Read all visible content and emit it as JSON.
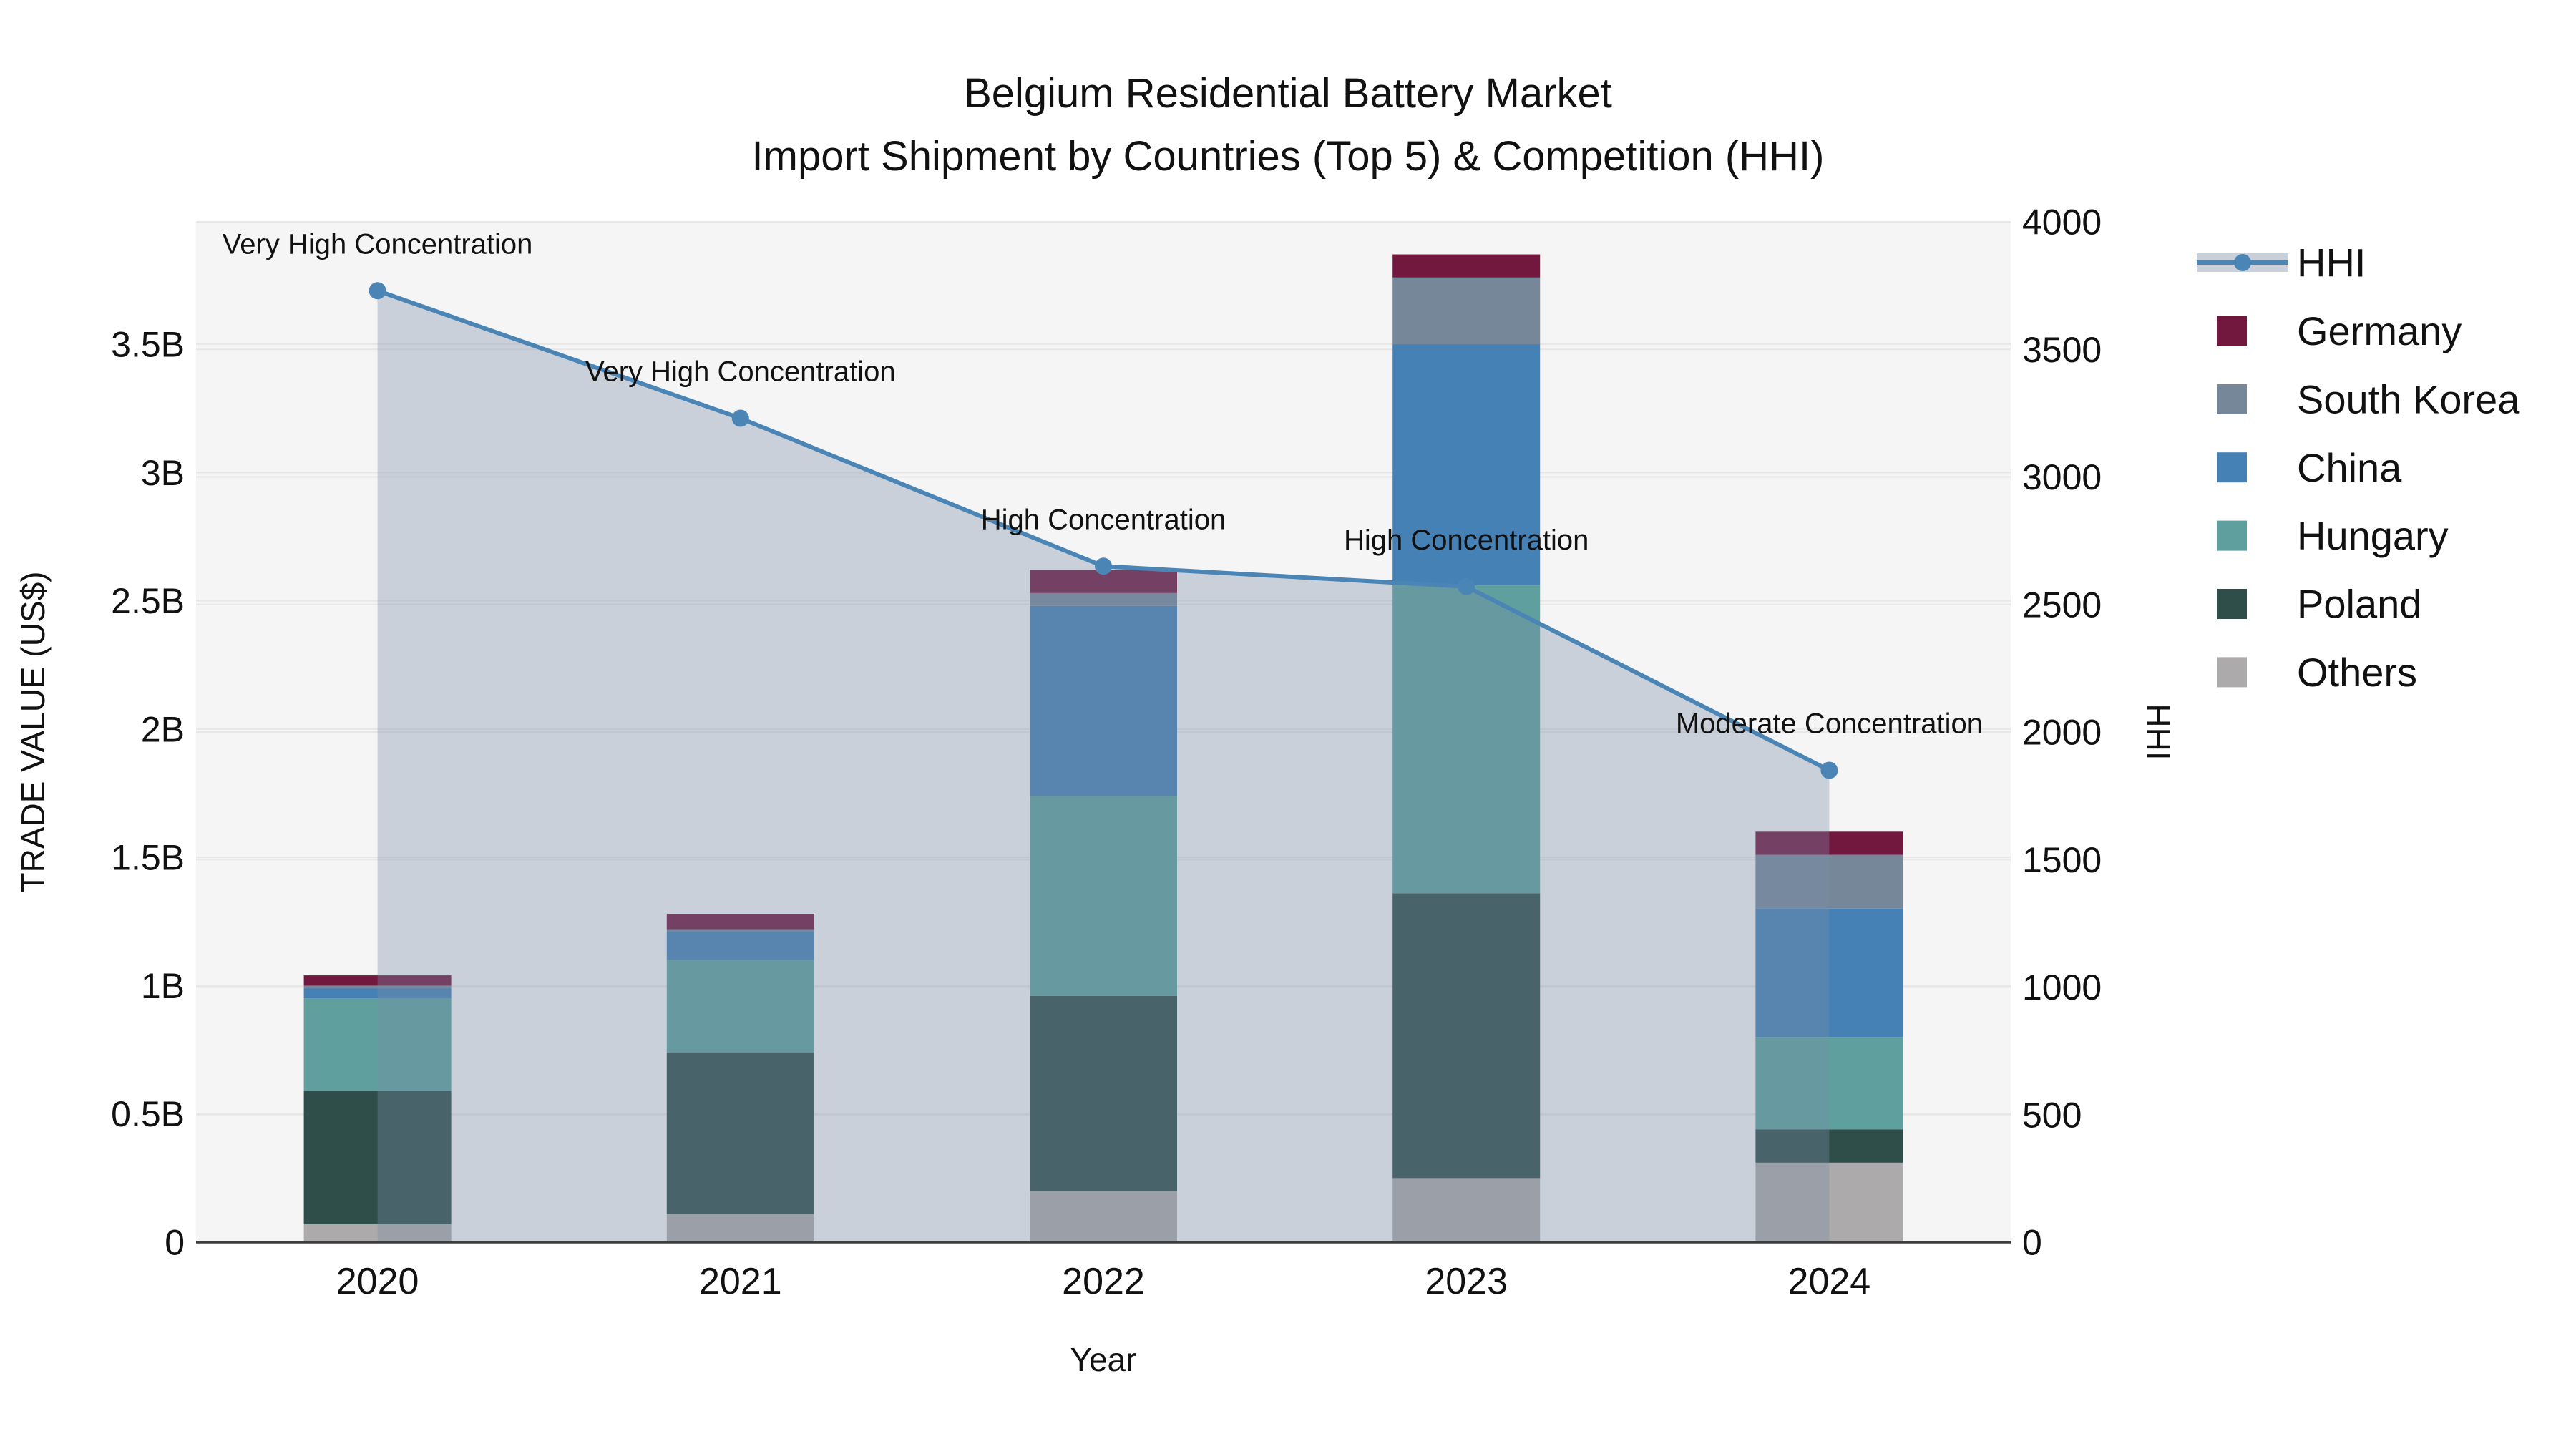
{
  "title": {
    "line1": "Belgium Residential Battery Market",
    "line2": "Import Shipment by Countries (Top 5) & Competition (HHI)"
  },
  "chart_data": {
    "type": "bar",
    "subtype": "stacked-bars-with-line-area",
    "categories": [
      "2020",
      "2021",
      "2022",
      "2023",
      "2024"
    ],
    "xlabel": "Year",
    "ylabel": "TRADE VALUE (US$)",
    "y2label": "HHI",
    "values_unit": "billion US$",
    "bar_series": [
      {
        "name": "Others",
        "color": "#acaaaa",
        "values": [
          0.07,
          0.11,
          0.2,
          0.25,
          0.31
        ]
      },
      {
        "name": "Poland",
        "color": "#2f4d49",
        "values": [
          0.52,
          0.63,
          0.76,
          1.11,
          0.13
        ]
      },
      {
        "name": "Hungary",
        "color": "#5fa09e",
        "values": [
          0.36,
          0.36,
          0.78,
          1.2,
          0.36
        ]
      },
      {
        "name": "China",
        "color": "#4681b6",
        "values": [
          0.04,
          0.11,
          0.74,
          0.94,
          0.5
        ]
      },
      {
        "name": "South Korea",
        "color": "#76879a",
        "values": [
          0.01,
          0.01,
          0.05,
          0.26,
          0.21
        ]
      },
      {
        "name": "Germany",
        "color": "#72183f",
        "values": [
          0.04,
          0.06,
          0.09,
          0.09,
          0.09
        ]
      }
    ],
    "bar_totals": [
      1.04,
      1.28,
      2.62,
      3.85,
      1.6
    ],
    "line_series": {
      "name": "HHI",
      "color": "#4a85b6",
      "area_color": "rgba(120,140,166,0.35)",
      "legend_band_color": "#c9d0da",
      "values": [
        3730,
        3230,
        2650,
        2570,
        1850
      ]
    },
    "annotations": [
      {
        "x": "2020",
        "text": "Very High Concentration"
      },
      {
        "x": "2021",
        "text": "Very High Concentration"
      },
      {
        "x": "2022",
        "text": "High Concentration"
      },
      {
        "x": "2023",
        "text": "High Concentration"
      },
      {
        "x": "2024",
        "text": "Moderate Concentration"
      }
    ],
    "left_axis": {
      "max": 3.977,
      "ticks": [
        {
          "v": 0,
          "label": "0"
        },
        {
          "v": 0.5,
          "label": "0.5B"
        },
        {
          "v": 1,
          "label": "1B"
        },
        {
          "v": 1.5,
          "label": "1.5B"
        },
        {
          "v": 2,
          "label": "2B"
        },
        {
          "v": 2.5,
          "label": "2.5B"
        },
        {
          "v": 3,
          "label": "3B"
        },
        {
          "v": 3.5,
          "label": "3.5B"
        }
      ]
    },
    "right_axis": {
      "max": 4000,
      "ticks": [
        {
          "v": 0,
          "label": "0"
        },
        {
          "v": 500,
          "label": "500"
        },
        {
          "v": 1000,
          "label": "1000"
        },
        {
          "v": 1500,
          "label": "1500"
        },
        {
          "v": 2000,
          "label": "2000"
        },
        {
          "v": 2500,
          "label": "2500"
        },
        {
          "v": 3000,
          "label": "3000"
        },
        {
          "v": 3500,
          "label": "3500"
        },
        {
          "v": 4000,
          "label": "4000"
        }
      ]
    },
    "legend_order": [
      "HHI",
      "Germany",
      "South Korea",
      "China",
      "Hungary",
      "Poland",
      "Others"
    ],
    "legend_position": "right",
    "grid": true,
    "plot_background": "#f5f5f5",
    "grid_color": "#e7e7e7",
    "axis_line_color": "#3d3d3d"
  }
}
